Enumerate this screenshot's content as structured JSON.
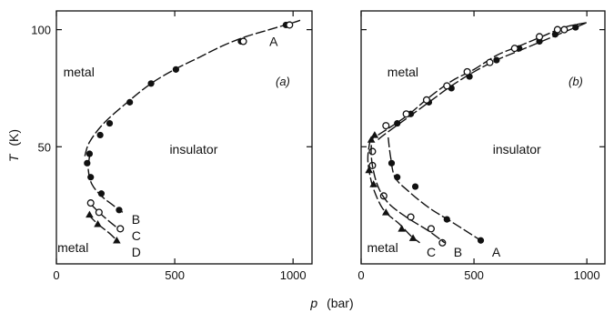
{
  "chart_data": [
    {
      "type": "scatter",
      "panel_label": "(a)",
      "ylabel_symbol": "T",
      "ylabel_unit": "(K)",
      "xlim": [
        0,
        1080
      ],
      "ylim": [
        0,
        108
      ],
      "xticks": [
        0,
        500,
        1000
      ],
      "yticks": [
        50,
        100
      ],
      "regions": [
        {
          "text": "metal",
          "x": 95,
          "y": 82
        },
        {
          "text": "insulator",
          "x": 580,
          "y": 49
        },
        {
          "text": "metal",
          "x": 70,
          "y": 7
        }
      ],
      "series": [
        {
          "name": "A",
          "label_at": {
            "x": 900,
            "y": 95
          },
          "line": [
            [
              120,
              46
            ],
            [
              140,
              52
            ],
            [
              200,
              60
            ],
            [
              300,
              69
            ],
            [
              400,
              77
            ],
            [
              500,
              83
            ],
            [
              600,
              88
            ],
            [
              700,
              93
            ],
            [
              800,
              97
            ],
            [
              900,
              100
            ],
            [
              1000,
              103
            ],
            [
              1030,
              104
            ]
          ],
          "points": [
            {
              "x": 140,
              "y": 47,
              "m": "filled"
            },
            {
              "x": 130,
              "y": 43,
              "m": "filled"
            },
            {
              "x": 145,
              "y": 37,
              "m": "filled"
            },
            {
              "x": 185,
              "y": 55,
              "m": "filled"
            },
            {
              "x": 225,
              "y": 60,
              "m": "filled"
            },
            {
              "x": 310,
              "y": 69,
              "m": "filled"
            },
            {
              "x": 400,
              "y": 77,
              "m": "filled"
            },
            {
              "x": 505,
              "y": 83,
              "m": "filled"
            },
            {
              "x": 780,
              "y": 95,
              "m": "filled"
            },
            {
              "x": 790,
              "y": 95,
              "m": "open"
            },
            {
              "x": 970,
              "y": 102,
              "m": "filled"
            },
            {
              "x": 985,
              "y": 102,
              "m": "open"
            }
          ]
        },
        {
          "name": "B",
          "label_at": {
            "x": 318,
            "y": 19
          },
          "line": [
            [
              140,
              46
            ],
            [
              135,
              40
            ],
            [
              150,
              34
            ],
            [
              190,
              29
            ],
            [
              240,
              25
            ],
            [
              280,
              22
            ]
          ],
          "points": [
            {
              "x": 190,
              "y": 30,
              "m": "filled"
            },
            {
              "x": 265,
              "y": 23,
              "m": "filled"
            }
          ]
        },
        {
          "name": "C",
          "label_at": {
            "x": 318,
            "y": 12
          },
          "line": [
            [
              140,
              26
            ],
            [
              180,
              22
            ],
            [
              225,
              18
            ],
            [
              275,
              14
            ]
          ],
          "points": [
            {
              "x": 145,
              "y": 26,
              "m": "open"
            },
            {
              "x": 180,
              "y": 22,
              "m": "open"
            },
            {
              "x": 270,
              "y": 15,
              "m": "open"
            }
          ]
        },
        {
          "name": "D",
          "label_at": {
            "x": 318,
            "y": 5
          },
          "line": [
            [
              135,
              21
            ],
            [
              175,
              17
            ],
            [
              225,
              13
            ],
            [
              265,
              9
            ]
          ],
          "points": [
            {
              "x": 140,
              "y": 21,
              "m": "tri"
            },
            {
              "x": 175,
              "y": 17,
              "m": "tri"
            },
            {
              "x": 255,
              "y": 10,
              "m": "tri"
            }
          ]
        }
      ]
    },
    {
      "type": "scatter",
      "panel_label": "(b)",
      "xlim": [
        0,
        1080
      ],
      "ylim": [
        0,
        108
      ],
      "xticks": [
        0,
        500,
        1000
      ],
      "yticks": [
        50,
        100
      ],
      "regions": [
        {
          "text": "metal",
          "x": 185,
          "y": 82
        },
        {
          "text": "insulator",
          "x": 690,
          "y": 49
        },
        {
          "text": "metal",
          "x": 95,
          "y": 7
        }
      ],
      "series": [
        {
          "name": "A",
          "label_at": {
            "x": 580,
            "y": 5
          },
          "line": [
            [
              75,
              53
            ],
            [
              100,
              55
            ],
            [
              200,
              62
            ],
            [
              300,
              69
            ],
            [
              400,
              76
            ],
            [
              500,
              82
            ],
            [
              600,
              87
            ],
            [
              700,
              91
            ],
            [
              800,
              95
            ],
            [
              900,
              99
            ],
            [
              1000,
              103
            ]
          ],
          "points": [
            {
              "x": 160,
              "y": 60,
              "m": "filled"
            },
            {
              "x": 220,
              "y": 64,
              "m": "filled"
            },
            {
              "x": 300,
              "y": 69,
              "m": "filled"
            },
            {
              "x": 400,
              "y": 75,
              "m": "filled"
            },
            {
              "x": 480,
              "y": 80,
              "m": "filled"
            },
            {
              "x": 600,
              "y": 87,
              "m": "filled"
            },
            {
              "x": 700,
              "y": 92,
              "m": "filled"
            },
            {
              "x": 790,
              "y": 95,
              "m": "filled"
            },
            {
              "x": 860,
              "y": 98,
              "m": "filled"
            },
            {
              "x": 950,
              "y": 101,
              "m": "filled"
            },
            {
              "x": 135,
              "y": 43,
              "m": "filled"
            },
            {
              "x": 160,
              "y": 37,
              "m": "filled"
            },
            {
              "x": 240,
              "y": 33,
              "m": "filled"
            },
            {
              "x": 380,
              "y": 19,
              "m": "filled"
            },
            {
              "x": 530,
              "y": 10,
              "m": "filled"
            }
          ]
        },
        {
          "name": "",
          "label_at": null,
          "line": [
            [
              120,
              54
            ],
            [
              130,
              46
            ],
            [
              150,
              37
            ],
            [
              210,
              31
            ],
            [
              300,
              24
            ],
            [
              400,
              18
            ],
            [
              530,
              10
            ]
          ],
          "points": []
        },
        {
          "name": "B",
          "label_at": {
            "x": 410,
            "y": 5
          },
          "line": [
            [
              75,
              55
            ],
            [
              200,
              63
            ],
            [
              300,
              71
            ],
            [
              400,
              78
            ],
            [
              500,
              83
            ],
            [
              600,
              89
            ],
            [
              700,
              93
            ],
            [
              800,
              97
            ],
            [
              900,
              101
            ],
            [
              1000,
              103
            ]
          ],
          "points": [
            {
              "x": 110,
              "y": 59,
              "m": "open"
            },
            {
              "x": 200,
              "y": 64,
              "m": "open"
            },
            {
              "x": 290,
              "y": 70,
              "m": "open"
            },
            {
              "x": 380,
              "y": 76,
              "m": "open"
            },
            {
              "x": 470,
              "y": 82,
              "m": "open"
            },
            {
              "x": 570,
              "y": 86,
              "m": "open"
            },
            {
              "x": 680,
              "y": 92,
              "m": "open"
            },
            {
              "x": 790,
              "y": 97,
              "m": "open"
            },
            {
              "x": 870,
              "y": 100,
              "m": "open"
            },
            {
              "x": 900,
              "y": 100,
              "m": "open"
            },
            {
              "x": 50,
              "y": 48,
              "m": "open"
            },
            {
              "x": 50,
              "y": 42,
              "m": "open"
            },
            {
              "x": 100,
              "y": 29,
              "m": "open"
            },
            {
              "x": 220,
              "y": 20,
              "m": "open"
            },
            {
              "x": 310,
              "y": 15,
              "m": "open"
            },
            {
              "x": 360,
              "y": 9,
              "m": "open"
            }
          ]
        },
        {
          "name": "",
          "label_at": null,
          "line": [
            [
              60,
              56
            ],
            [
              45,
              50
            ],
            [
              50,
              42
            ],
            [
              75,
              33
            ],
            [
              120,
              26
            ],
            [
              200,
              20
            ],
            [
              300,
              14
            ],
            [
              370,
              9
            ]
          ],
          "points": []
        },
        {
          "name": "C",
          "label_at": {
            "x": 290,
            "y": 5
          },
          "line": [
            [
              40,
              53
            ],
            [
              30,
              46
            ],
            [
              35,
              40
            ],
            [
              55,
              32
            ],
            [
              100,
              23
            ],
            [
              170,
              17
            ],
            [
              220,
              12
            ],
            [
              260,
              9
            ]
          ],
          "points": [
            {
              "x": 60,
              "y": 55,
              "m": "tri"
            },
            {
              "x": 45,
              "y": 53,
              "m": "tri"
            },
            {
              "x": 35,
              "y": 40,
              "m": "tri"
            },
            {
              "x": 55,
              "y": 34,
              "m": "tri"
            },
            {
              "x": 110,
              "y": 22,
              "m": "tri"
            },
            {
              "x": 180,
              "y": 15,
              "m": "tri"
            },
            {
              "x": 230,
              "y": 11,
              "m": "tri"
            }
          ]
        }
      ]
    }
  ],
  "xlabel_symbol": "p",
  "xlabel_unit": "(bar)"
}
